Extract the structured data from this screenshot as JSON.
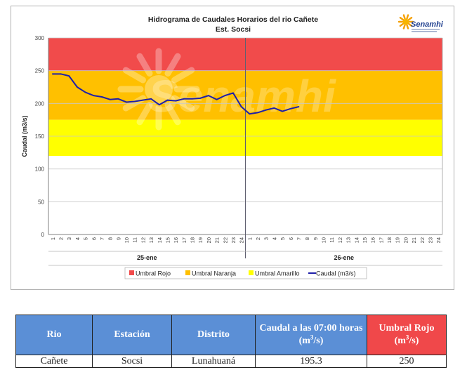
{
  "chart_data": {
    "type": "line",
    "title": "Hidrograma  de Caudales Horarios  del rio Cañete",
    "subtitle": "Est. Socsi",
    "ylabel": "Caudal (m3/s)",
    "ylim": [
      0,
      300
    ],
    "yticks": [
      0,
      50,
      100,
      150,
      200,
      250,
      300
    ],
    "days": [
      "25-ene",
      "26-ene"
    ],
    "hours": [
      "1",
      "2",
      "3",
      "4",
      "5",
      "6",
      "7",
      "8",
      "9",
      "10",
      "11",
      "12",
      "13",
      "14",
      "15",
      "16",
      "17",
      "18",
      "19",
      "20",
      "21",
      "22",
      "23",
      "24"
    ],
    "bands": [
      {
        "name": "Umbral Rojo",
        "from": 250,
        "to": 300,
        "color": "#f14b4b"
      },
      {
        "name": "Umbral Naranja",
        "from": 175,
        "to": 250,
        "color": "#ffc000"
      },
      {
        "name": "Umbral Amarillo",
        "from": 120,
        "to": 175,
        "color": "#ffff00"
      }
    ],
    "series": [
      {
        "name": "Caudal (m3/s)",
        "color": "#1f1fa8",
        "day1": [
          245,
          245,
          242,
          225,
          217,
          212,
          210,
          206,
          207,
          202,
          203,
          205,
          207,
          198,
          205,
          204,
          207,
          207,
          208,
          212,
          206,
          212,
          216,
          195
        ],
        "day2": [
          184,
          186,
          190,
          193,
          188,
          192,
          195
        ]
      }
    ],
    "legend": [
      "Umbral Rojo",
      "Umbral Naranja",
      "Umbral Amarillo",
      "Caudal (m3/s)"
    ],
    "legend_position": "bottom"
  },
  "logo": {
    "brand": "Senamhi",
    "watermark": "Senamhi"
  },
  "table": {
    "headers": {
      "rio": "Rio",
      "estacion": "Estación",
      "distrito": "Distrito",
      "caudal_prefix": "Caudal a las 07:00 horas (m",
      "caudal_sup": "3",
      "caudal_suffix": "/s)",
      "umbral_prefix": "Umbral Rojo (m",
      "umbral_sup": "3",
      "umbral_suffix": "/s)"
    },
    "row": {
      "rio": "Cañete",
      "estacion": "Socsi",
      "distrito": "Lunahuaná",
      "caudal": "195.3",
      "umbral": "250"
    }
  }
}
